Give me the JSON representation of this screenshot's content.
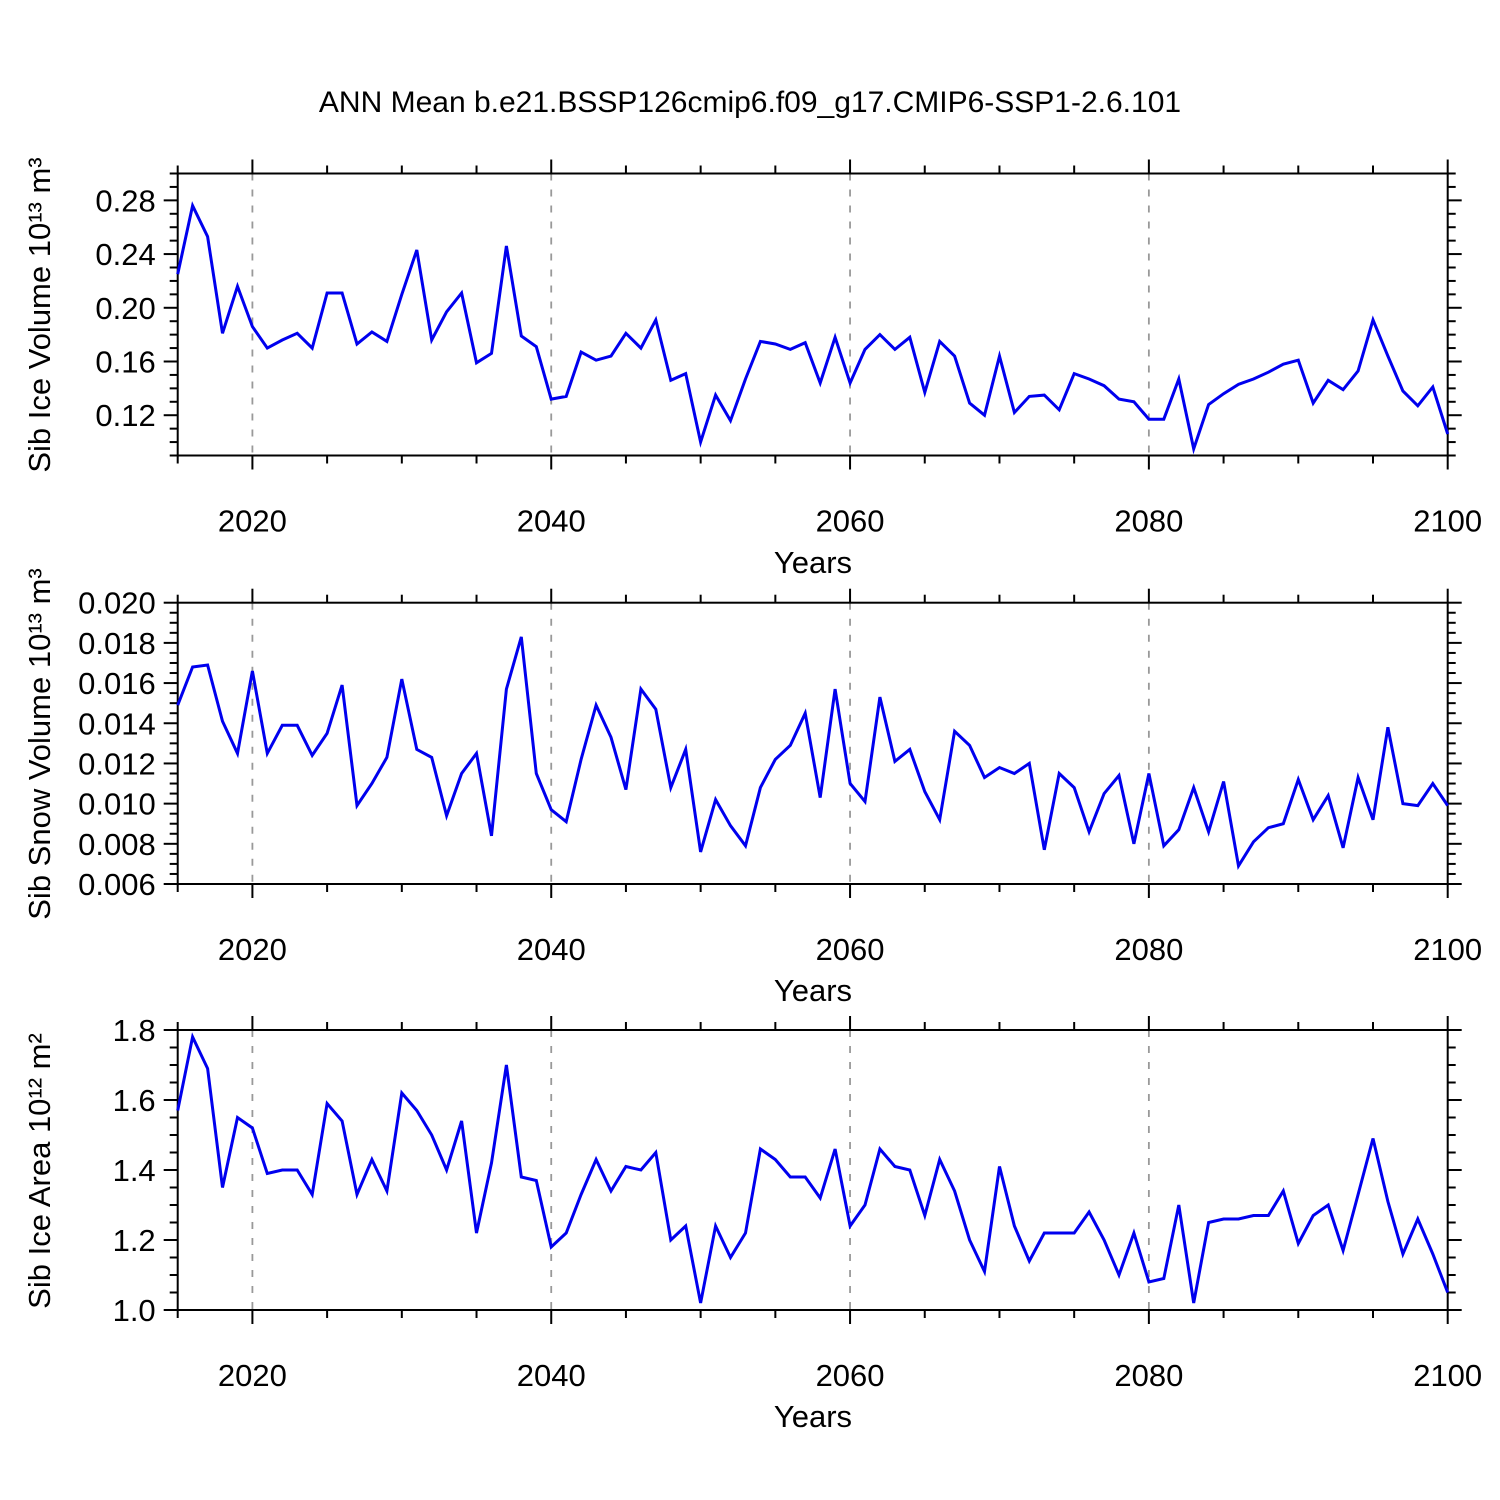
{
  "title": "ANN Mean b.e21.BSSP126cmip6.f09_g17.CMIP6-SSP1-2.6.101",
  "frame_color": "#000000",
  "gridline_color": "#999999",
  "chart_data": [
    {
      "type": "line",
      "ylabel": "Sib Ice Volume 10¹³ m³",
      "xlabel": "Years",
      "line_color": "#0000ee",
      "xlim": [
        2015,
        2100
      ],
      "ylim": [
        0.09,
        0.3
      ],
      "x_start": 2015,
      "x_major_ticks": [
        2020,
        2040,
        2060,
        2080,
        2100
      ],
      "x_tick_labels": [
        "2020",
        "2040",
        "2060",
        "2080",
        "2100"
      ],
      "x_minor_step": 5,
      "y_major_ticks": [
        0.12,
        0.16,
        0.2,
        0.24,
        0.28
      ],
      "y_tick_labels": [
        "0.12",
        "0.16",
        "0.20",
        "0.24",
        "0.28"
      ],
      "y_minor_step": 0.01,
      "grid_x": [
        2020,
        2040,
        2060,
        2080
      ],
      "values": [
        0.225,
        0.276,
        0.253,
        0.181,
        0.216,
        0.186,
        0.17,
        0.176,
        0.181,
        0.17,
        0.211,
        0.211,
        0.173,
        0.182,
        0.175,
        0.21,
        0.243,
        0.176,
        0.197,
        0.211,
        0.159,
        0.166,
        0.246,
        0.179,
        0.171,
        0.132,
        0.134,
        0.167,
        0.161,
        0.164,
        0.181,
        0.17,
        0.191,
        0.146,
        0.151,
        0.1,
        0.135,
        0.116,
        0.147,
        0.175,
        0.173,
        0.169,
        0.174,
        0.144,
        0.178,
        0.144,
        0.169,
        0.18,
        0.169,
        0.178,
        0.137,
        0.175,
        0.164,
        0.129,
        0.12,
        0.164,
        0.122,
        0.134,
        0.135,
        0.124,
        0.151,
        0.147,
        0.142,
        0.132,
        0.13,
        0.117,
        0.117,
        0.147,
        0.095,
        0.128,
        0.136,
        0.143,
        0.147,
        0.152,
        0.158,
        0.161,
        0.129,
        0.146,
        0.139,
        0.153,
        0.191,
        0.164,
        0.138,
        0.127,
        0.141,
        0.106
      ]
    },
    {
      "type": "line",
      "ylabel": "Sib Snow Volume 10¹³ m³",
      "xlabel": "Years",
      "line_color": "#0000ee",
      "xlim": [
        2015,
        2100
      ],
      "ylim": [
        0.006,
        0.02
      ],
      "x_start": 2015,
      "x_major_ticks": [
        2020,
        2040,
        2060,
        2080,
        2100
      ],
      "x_tick_labels": [
        "2020",
        "2040",
        "2060",
        "2080",
        "2100"
      ],
      "x_minor_step": 5,
      "y_major_ticks": [
        0.006,
        0.008,
        0.01,
        0.012,
        0.014,
        0.016,
        0.018,
        0.02
      ],
      "y_tick_labels": [
        "0.006",
        "0.008",
        "0.010",
        "0.012",
        "0.014",
        "0.016",
        "0.018",
        "0.020"
      ],
      "y_minor_step": 0.0005,
      "grid_x": [
        2020,
        2040,
        2060,
        2080
      ],
      "values": [
        0.0149,
        0.0168,
        0.0169,
        0.0141,
        0.0125,
        0.0166,
        0.0125,
        0.0139,
        0.0139,
        0.0124,
        0.0135,
        0.0159,
        0.0099,
        0.011,
        0.0123,
        0.0162,
        0.0127,
        0.0123,
        0.0094,
        0.0115,
        0.0125,
        0.0084,
        0.0157,
        0.0183,
        0.0115,
        0.0097,
        0.0091,
        0.0122,
        0.0149,
        0.0133,
        0.0107,
        0.0157,
        0.0147,
        0.0108,
        0.0127,
        0.0076,
        0.0102,
        0.0089,
        0.0079,
        0.0108,
        0.0122,
        0.0129,
        0.0145,
        0.0103,
        0.0157,
        0.011,
        0.0101,
        0.0153,
        0.0121,
        0.0127,
        0.0106,
        0.0092,
        0.0136,
        0.0129,
        0.0113,
        0.0118,
        0.0115,
        0.012,
        0.0077,
        0.0115,
        0.0108,
        0.0086,
        0.0105,
        0.0114,
        0.008,
        0.0115,
        0.0079,
        0.0087,
        0.0108,
        0.0086,
        0.0111,
        0.0069,
        0.0081,
        0.0088,
        0.009,
        0.0112,
        0.0092,
        0.0104,
        0.0078,
        0.0113,
        0.0092,
        0.0138,
        0.01,
        0.0099,
        0.011,
        0.0099
      ]
    },
    {
      "type": "line",
      "ylabel": "Sib Ice Area 10¹² m²",
      "xlabel": "Years",
      "line_color": "#0000ee",
      "xlim": [
        2015,
        2100
      ],
      "ylim": [
        1.0,
        1.8
      ],
      "x_start": 2015,
      "x_major_ticks": [
        2020,
        2040,
        2060,
        2080,
        2100
      ],
      "x_tick_labels": [
        "2020",
        "2040",
        "2060",
        "2080",
        "2100"
      ],
      "x_minor_step": 5,
      "y_major_ticks": [
        1.0,
        1.2,
        1.4,
        1.6,
        1.8
      ],
      "y_tick_labels": [
        "1.0",
        "1.2",
        "1.4",
        "1.6",
        "1.8"
      ],
      "y_minor_step": 0.05,
      "grid_x": [
        2020,
        2040,
        2060,
        2080
      ],
      "values": [
        1.57,
        1.78,
        1.69,
        1.35,
        1.55,
        1.52,
        1.39,
        1.4,
        1.4,
        1.33,
        1.59,
        1.54,
        1.33,
        1.43,
        1.34,
        1.62,
        1.57,
        1.5,
        1.4,
        1.54,
        1.22,
        1.42,
        1.7,
        1.38,
        1.37,
        1.18,
        1.22,
        1.33,
        1.43,
        1.34,
        1.41,
        1.4,
        1.45,
        1.2,
        1.24,
        1.02,
        1.24,
        1.15,
        1.22,
        1.46,
        1.43,
        1.38,
        1.38,
        1.32,
        1.46,
        1.24,
        1.3,
        1.46,
        1.41,
        1.4,
        1.27,
        1.43,
        1.34,
        1.2,
        1.11,
        1.41,
        1.24,
        1.14,
        1.22,
        1.22,
        1.22,
        1.28,
        1.2,
        1.1,
        1.22,
        1.08,
        1.09,
        1.3,
        1.02,
        1.25,
        1.26,
        1.26,
        1.27,
        1.27,
        1.34,
        1.19,
        1.27,
        1.3,
        1.17,
        1.33,
        1.49,
        1.31,
        1.16,
        1.26,
        1.16,
        1.05
      ]
    }
  ]
}
